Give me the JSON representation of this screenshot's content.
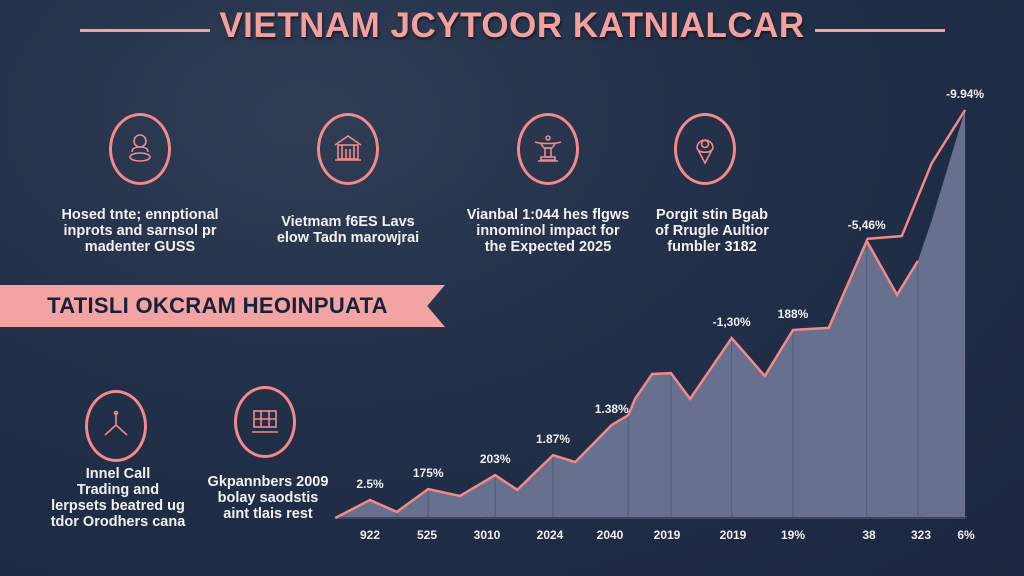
{
  "title": "VIETNAM JCYTOOR KATNIALCAR",
  "colors": {
    "accent": "#f3898a",
    "title": "#f4a09c",
    "background": "#1e2a40",
    "area_fill": "#6b7592",
    "banner_text": "#17223a"
  },
  "features_top": [
    {
      "icon": "buddha-statue-icon",
      "lines": [
        "Hosed tnte; ennptional",
        "inprots and sarnsol pr",
        "madenter GUSS"
      ]
    },
    {
      "icon": "temple-building-icon",
      "lines": [
        "Vietmam f6ES Lavs",
        "elow Tadn marowjrai"
      ]
    },
    {
      "icon": "pagoda-monument-icon",
      "lines": [
        "Vianbal 1:044 hes flgws",
        "innominol impact for",
        "the Expected 2025"
      ]
    },
    {
      "icon": "location-pin-icon",
      "lines": [
        "Porgit stin Bgab",
        "of Rrugle Aultior",
        "fumbler 3182"
      ]
    }
  ],
  "banner": "TATISLI OKCRAM HEOINPUATA",
  "features_bottom": [
    {
      "icon": "tripod-tool-icon",
      "lines": [
        "Innel Call",
        "Trading and",
        "lerpsets beatred ug",
        "tdor Orodhers cana"
      ]
    },
    {
      "icon": "grid-window-icon",
      "lines": [
        "Gkpannbers 2009",
        "bolay saodstis",
        "aint tlais rest"
      ]
    }
  ],
  "chart_data": {
    "type": "area",
    "title": "",
    "xlabel": "",
    "ylabel": "",
    "grid": false,
    "legend": "none",
    "categories": [
      "922",
      "525",
      "3010",
      "2024",
      "2040",
      "2019",
      "2019",
      "19%",
      "38",
      "323",
      "6%"
    ],
    "ylim": [
      0,
      100
    ],
    "series": [
      {
        "points": [
          [
            -0.61,
            0
          ],
          [
            0,
            4.4
          ],
          [
            0.47,
            1.5
          ],
          [
            1.02,
            7.1
          ],
          [
            1.55,
            5.4
          ],
          [
            2.13,
            10.5
          ],
          [
            2.48,
            6.9
          ],
          [
            3.05,
            15.4
          ],
          [
            3.42,
            13.7
          ],
          [
            4.03,
            22.8
          ],
          [
            4.32,
            25.2
          ],
          [
            4.44,
            29.2
          ],
          [
            4.74,
            35.3
          ],
          [
            5.06,
            35.5
          ],
          [
            5.35,
            29.2
          ],
          [
            5.98,
            44.1
          ],
          [
            6.53,
            34.8
          ],
          [
            7.0,
            46.1
          ],
          [
            7.47,
            46.6
          ],
          [
            7.97,
            67.9
          ],
          [
            8.54,
            54.7
          ],
          [
            8.94,
            63.0
          ]
        ]
      },
      {
        "points": [
          [
            7.97,
            68.4
          ],
          [
            8.63,
            69.1
          ],
          [
            9.24,
            87.0
          ],
          [
            9.98,
            100
          ]
        ]
      }
    ],
    "data_labels": [
      {
        "text": "2.5%",
        "x": 0,
        "y": 4.4
      },
      {
        "text": "175%",
        "x": 1.02,
        "y": 7.1
      },
      {
        "text": "203%",
        "x": 2.13,
        "y": 10.5
      },
      {
        "text": "1.87%",
        "x": 3.05,
        "y": 15.4
      },
      {
        "text": "1.38%",
        "x": 4.03,
        "y": 22.8
      },
      {
        "text": "-1,30%",
        "x": 5.98,
        "y": 44.1
      },
      {
        "text": "188%",
        "x": 7.0,
        "y": 46.1
      },
      {
        "text": "-5,46%",
        "x": 7.97,
        "y": 67.9
      },
      {
        "text": "-9.94%",
        "x": 9.98,
        "y": 100
      }
    ]
  }
}
